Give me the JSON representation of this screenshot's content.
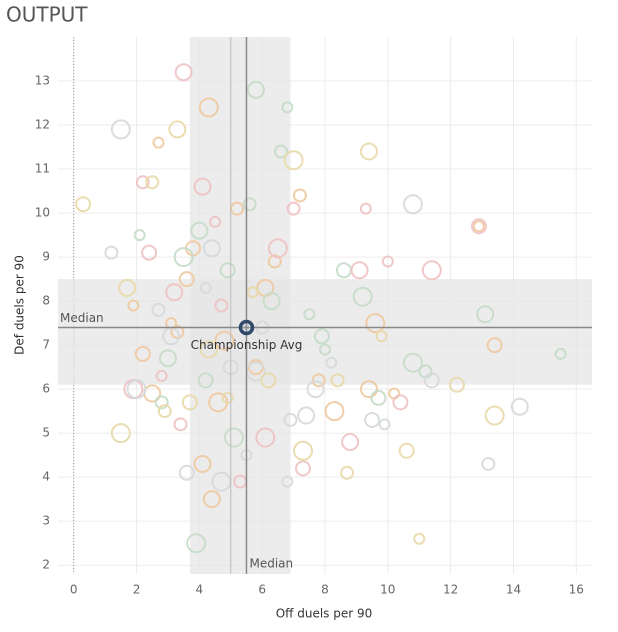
{
  "chart_data": {
    "type": "scatter",
    "title": "OUTPUT",
    "x_label": "Off duels per 90",
    "y_label": "Def duels per 90",
    "xlim": [
      -0.5,
      16.5
    ],
    "ylim": [
      1.8,
      14
    ],
    "xticks": [
      0,
      2,
      4,
      6,
      8,
      10,
      12,
      14,
      16
    ],
    "yticks": [
      2,
      3,
      4,
      5,
      6,
      7,
      8,
      9,
      10,
      11,
      12,
      13
    ],
    "grid": true,
    "zero_line": true,
    "bands": [
      {
        "axis": "x",
        "from": 3.7,
        "to": 6.9
      },
      {
        "axis": "y",
        "from": 6.1,
        "to": 8.5
      }
    ],
    "reference_lines": [
      {
        "axis": "x",
        "value": 5.0
      },
      {
        "axis": "x",
        "value": 5.5,
        "label": "Median"
      },
      {
        "axis": "y",
        "value": 7.4,
        "label": "Median"
      }
    ],
    "highlight": {
      "x": 5.5,
      "y": 7.4,
      "label": "Championship Avg",
      "color": "#2f4a68"
    },
    "series": [
      {
        "color": "#efc9a0",
        "x": [
          2.7,
          3.8,
          4.3,
          5.2,
          6.1,
          3.1,
          2.2,
          4.8,
          7.8,
          9.4,
          10.2,
          3.6,
          4.6,
          6.4,
          2.5,
          1.9,
          5.8,
          8.3,
          3.3,
          4.1,
          12.9,
          13.4,
          9.6,
          7.2,
          4.4
        ],
        "y": [
          11.6,
          9.2,
          12.4,
          10.1,
          8.3,
          7.5,
          6.8,
          7.1,
          6.2,
          6.0,
          5.9,
          8.5,
          5.7,
          8.9,
          5.9,
          7.9,
          6.5,
          5.5,
          7.3,
          4.3,
          9.7,
          7.0,
          7.5,
          10.4,
          3.5
        ]
      },
      {
        "color": "#c5dcc8",
        "x": [
          5.8,
          6.8,
          4.9,
          3.5,
          2.8,
          6.3,
          7.5,
          8.6,
          9.2,
          11.2,
          13.1,
          15.5,
          4.2,
          5.1,
          6.6,
          3.0,
          2.1,
          7.9,
          10.8,
          5.6,
          4.0,
          8.0,
          9.7,
          3.9
        ],
        "y": [
          12.8,
          12.4,
          8.7,
          9.0,
          5.7,
          8.0,
          7.7,
          8.7,
          8.1,
          6.4,
          7.7,
          6.8,
          6.2,
          4.9,
          11.4,
          6.7,
          9.5,
          7.2,
          6.6,
          10.2,
          9.6,
          6.9,
          5.8,
          2.5
        ]
      },
      {
        "color": "#f0c2c2",
        "x": [
          2.2,
          3.5,
          4.5,
          2.4,
          6.5,
          7.0,
          9.1,
          9.3,
          10.4,
          1.9,
          3.4,
          8.8,
          10.0,
          12.9,
          6.1,
          5.3,
          4.1,
          2.8,
          7.3,
          11.4,
          4.7,
          3.2
        ],
        "y": [
          10.7,
          13.2,
          9.8,
          9.1,
          9.2,
          10.1,
          8.7,
          10.1,
          5.7,
          6.0,
          5.2,
          4.8,
          8.9,
          9.7,
          4.9,
          3.9,
          10.6,
          6.3,
          4.2,
          8.7,
          7.9,
          8.2
        ]
      },
      {
        "color": "#d6d9dc",
        "x": [
          1.5,
          2.7,
          3.1,
          4.2,
          5.0,
          5.8,
          6.9,
          7.4,
          8.2,
          9.5,
          10.8,
          13.2,
          14.2,
          5.5,
          3.6,
          4.7,
          6.0,
          7.7,
          9.9,
          11.4,
          2.0,
          1.2,
          4.4,
          6.8
        ],
        "y": [
          11.9,
          7.8,
          7.2,
          8.3,
          6.5,
          6.4,
          5.3,
          5.4,
          6.6,
          5.3,
          10.2,
          4.3,
          5.6,
          4.5,
          4.1,
          3.9,
          7.4,
          6.0,
          5.2,
          6.2,
          6.0,
          9.1,
          9.2,
          3.9
        ]
      },
      {
        "color": "#e8d9a9",
        "x": [
          0.3,
          1.5,
          2.5,
          3.3,
          4.9,
          6.2,
          7.0,
          8.7,
          9.4,
          11.0,
          10.6,
          13.4,
          2.9,
          4.3,
          5.7,
          3.7,
          7.3,
          8.4,
          1.7,
          9.8,
          12.2
        ],
        "y": [
          10.2,
          5.0,
          10.7,
          11.9,
          5.8,
          6.2,
          11.2,
          4.1,
          11.4,
          2.6,
          4.6,
          5.4,
          5.5,
          6.9,
          8.2,
          5.7,
          4.6,
          6.2,
          8.3,
          7.2,
          6.1
        ]
      }
    ]
  }
}
